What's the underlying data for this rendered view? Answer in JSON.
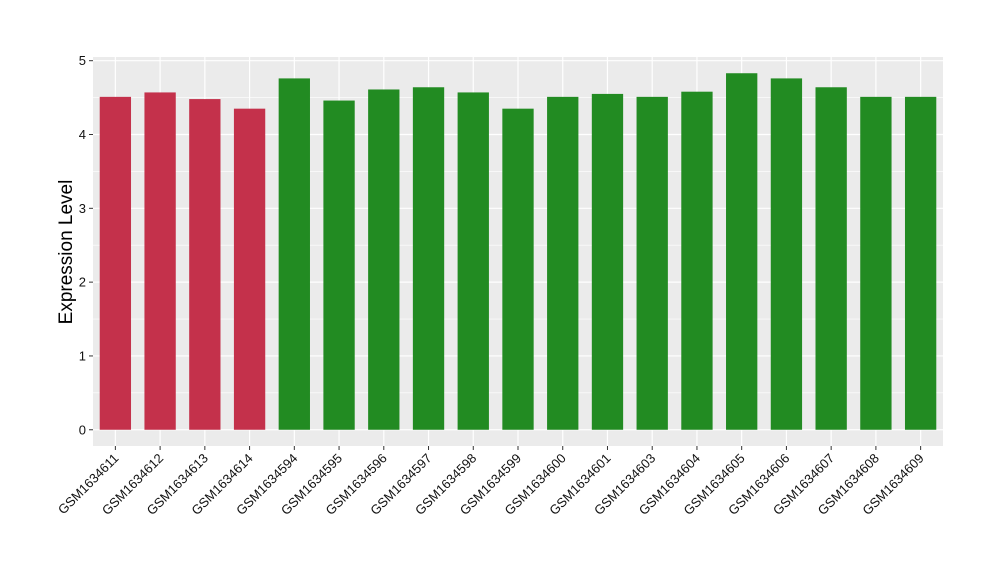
{
  "chart_data": {
    "type": "bar",
    "title": "",
    "xlabel": "",
    "ylabel": "Expression Level",
    "ylim": [
      -0.22,
      5.05
    ],
    "yticks": [
      0,
      1,
      2,
      3,
      4,
      5
    ],
    "grid": true,
    "legend": "none",
    "categories": [
      "GSM1634611",
      "GSM1634612",
      "GSM1634613",
      "GSM1634614",
      "GSM1634594",
      "GSM1634595",
      "GSM1634596",
      "GSM1634597",
      "GSM1634598",
      "GSM1634599",
      "GSM1634600",
      "GSM1634601",
      "GSM1634603",
      "GSM1634604",
      "GSM1634605",
      "GSM1634606",
      "GSM1634607",
      "GSM1634608",
      "GSM1634609"
    ],
    "values": [
      4.51,
      4.57,
      4.48,
      4.35,
      4.76,
      4.46,
      4.61,
      4.64,
      4.57,
      4.35,
      4.51,
      4.55,
      4.51,
      4.58,
      4.83,
      4.76,
      4.64,
      4.51,
      4.51
    ],
    "bar_colors": [
      "#c4314b",
      "#c4314b",
      "#c4314b",
      "#c4314b",
      "#228b22",
      "#228b22",
      "#228b22",
      "#228b22",
      "#228b22",
      "#228b22",
      "#228b22",
      "#228b22",
      "#228b22",
      "#228b22",
      "#228b22",
      "#228b22",
      "#228b22",
      "#228b22",
      "#228b22"
    ],
    "colors": {
      "panel_background": "#ebebeb",
      "grid_line": "#ffffff",
      "group_red": "#c4314b",
      "group_green": "#228b22"
    }
  }
}
